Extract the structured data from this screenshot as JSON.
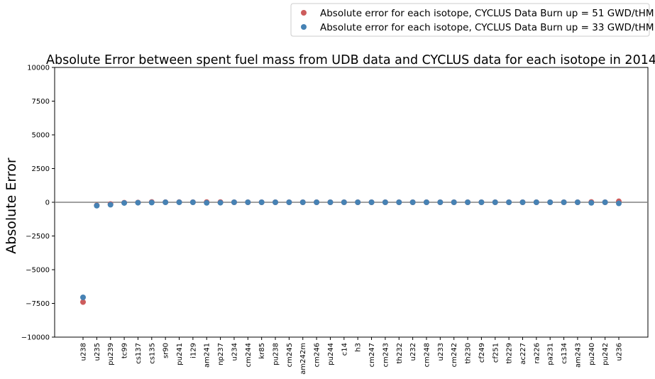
{
  "chart_data": {
    "type": "scatter",
    "title": "Absolute Error between spent fuel mass from UDB data and CYCLUS data for each isotope in 2014",
    "xlabel": "",
    "ylabel": "Absolute Error",
    "ylim": [
      -10000,
      10000
    ],
    "yticks": [
      10000,
      7500,
      5000,
      2500,
      0,
      -2500,
      -5000,
      -7500,
      -10000
    ],
    "ytick_labels": [
      "10000",
      "7500",
      "5000",
      "2500",
      "0",
      "−2500",
      "−5000",
      "−7500",
      "−10000"
    ],
    "grid": false,
    "legend_position": "top-right",
    "zero_line": true,
    "categories": [
      "u238",
      "u235",
      "pu239",
      "tc99",
      "cs137",
      "cs135",
      "sr90",
      "pu241",
      "i129",
      "am241",
      "np237",
      "u234",
      "cm244",
      "kr85",
      "pu238",
      "cm245",
      "am242m",
      "cm246",
      "pu244",
      "c14",
      "h3",
      "cm247",
      "cm243",
      "th232",
      "u232",
      "cm248",
      "u233",
      "cm242",
      "th230",
      "cf249",
      "cf251",
      "th229",
      "ac227",
      "ra226",
      "pa231",
      "cs134",
      "am243",
      "pu240",
      "pu242",
      "u236"
    ],
    "series": [
      {
        "name": "Absolute error for each isotope, CYCLUS Data Burn up = 51 GWD/tHM",
        "color": "#cd5c5c",
        "values": [
          -7400,
          -230,
          -130,
          -30,
          -20,
          20,
          5,
          10,
          5,
          15,
          15,
          0,
          0,
          0,
          0,
          0,
          0,
          0,
          0,
          0,
          0,
          0,
          0,
          0,
          0,
          0,
          0,
          0,
          0,
          0,
          0,
          0,
          0,
          0,
          0,
          0,
          0,
          20,
          0,
          70
        ]
      },
      {
        "name": "Absolute error for each isotope, CYCLUS Data Burn up = 33 GWD/tHM",
        "color": "#4682b4",
        "values": [
          -7050,
          -250,
          -180,
          -50,
          -30,
          -20,
          0,
          0,
          0,
          -40,
          -30,
          0,
          0,
          0,
          0,
          0,
          0,
          0,
          0,
          0,
          0,
          0,
          0,
          0,
          0,
          0,
          0,
          0,
          0,
          0,
          0,
          0,
          0,
          0,
          0,
          0,
          0,
          -40,
          0,
          -80
        ]
      }
    ]
  }
}
